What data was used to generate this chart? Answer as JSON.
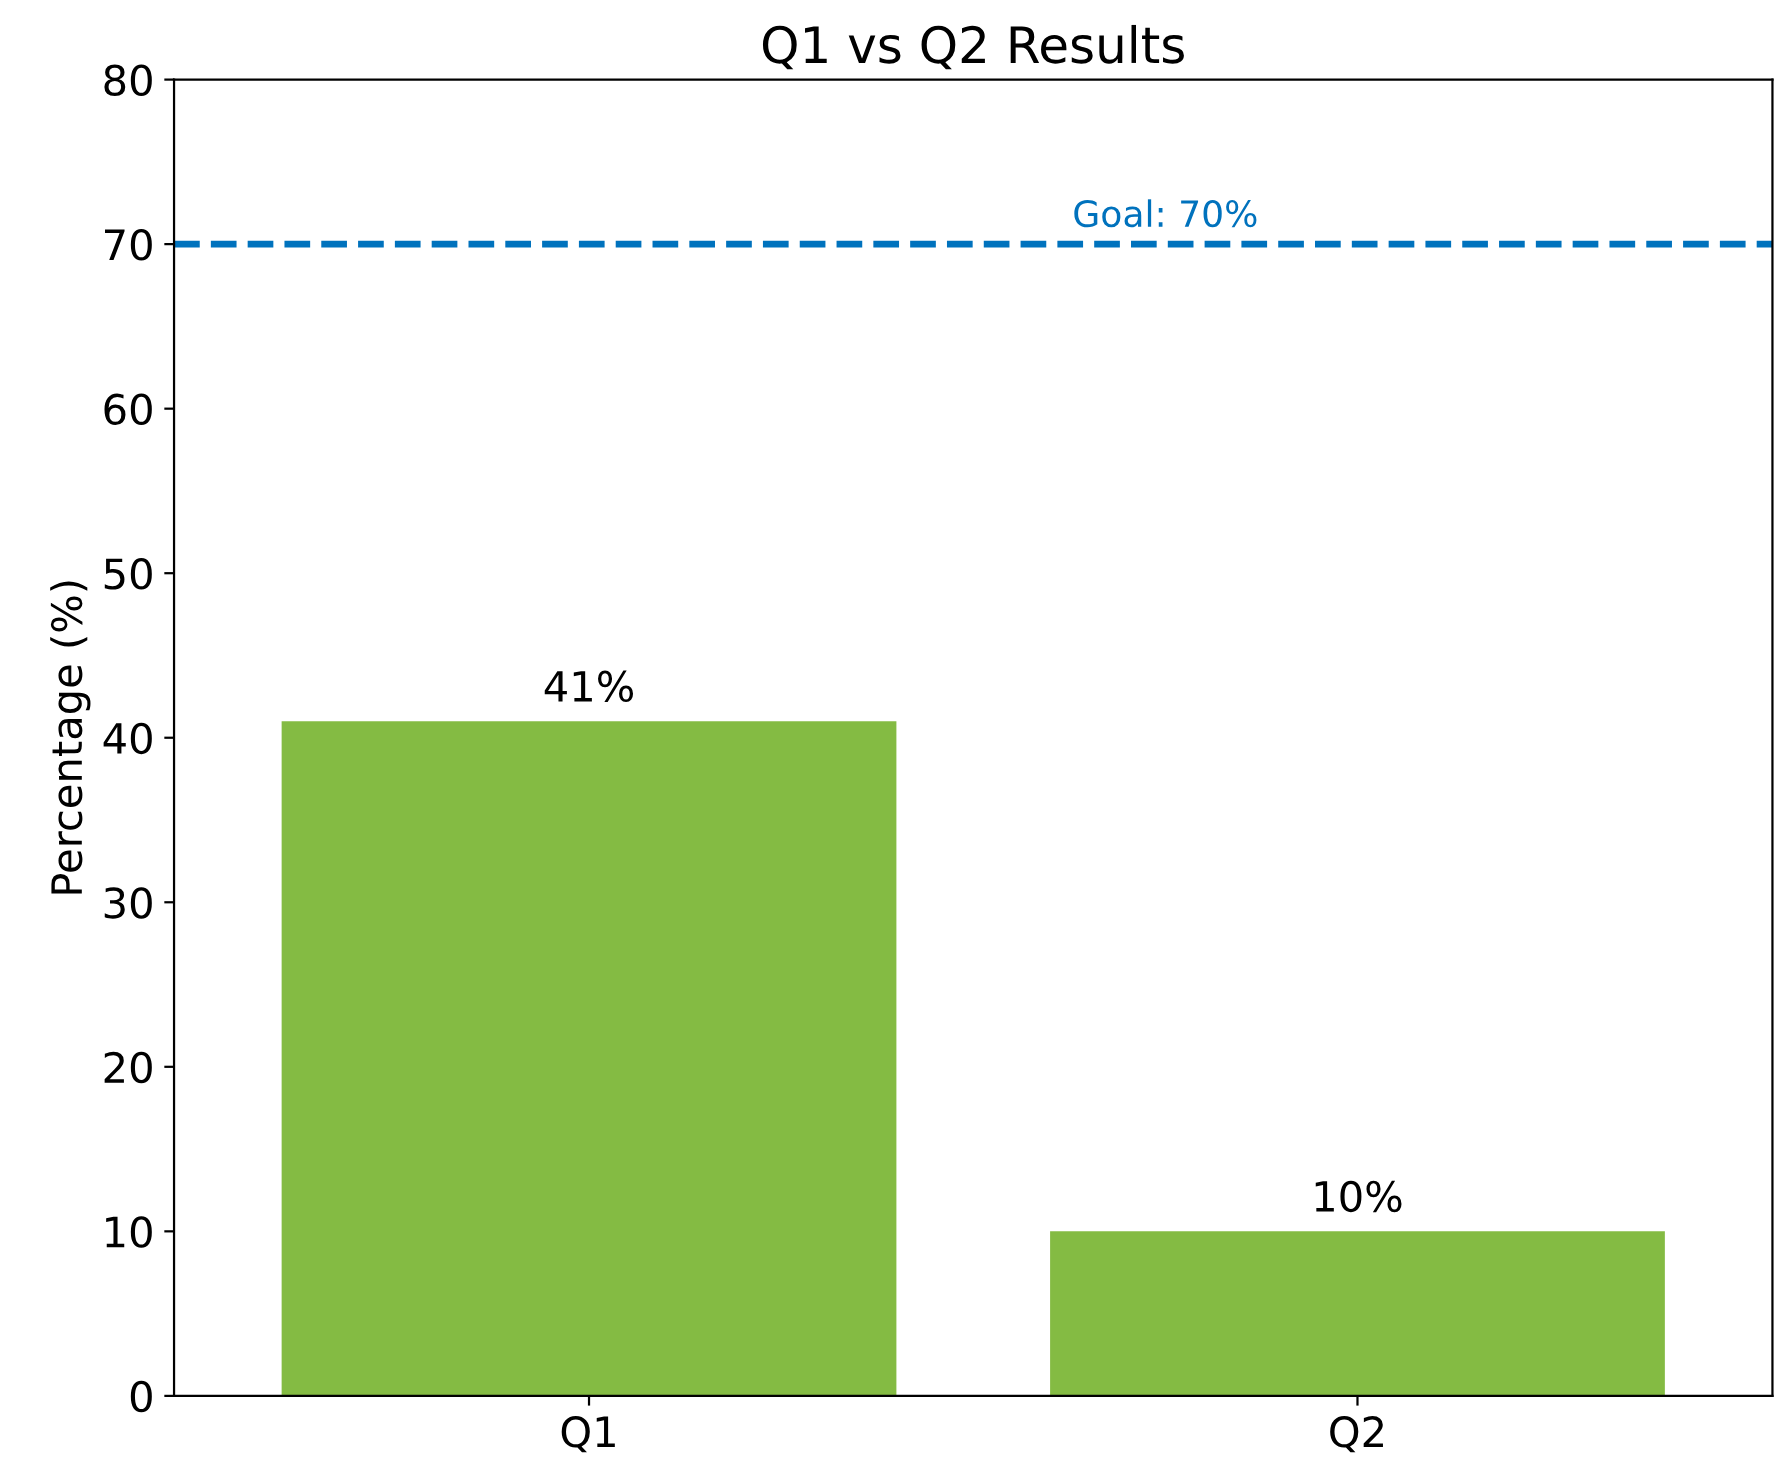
{
  "chart_data": {
    "type": "bar",
    "title": "Q1 vs Q2 Results",
    "ylabel": "Percentage (%)",
    "categories": [
      "Q1",
      "Q2"
    ],
    "series": [
      {
        "color": "#84bb43",
        "values": [
          41,
          10
        ],
        "value_labels": [
          "41%",
          "10%"
        ]
      }
    ],
    "ylim": [
      0,
      80
    ],
    "yticks": [
      0,
      10,
      20,
      30,
      40,
      50,
      60,
      70,
      80
    ],
    "ref_lines": [
      {
        "axis": "y",
        "value": 70,
        "label": "Goal: 70%",
        "color": "#0072bd",
        "line_style": "dashed"
      }
    ],
    "grid": false,
    "legend": false
  }
}
